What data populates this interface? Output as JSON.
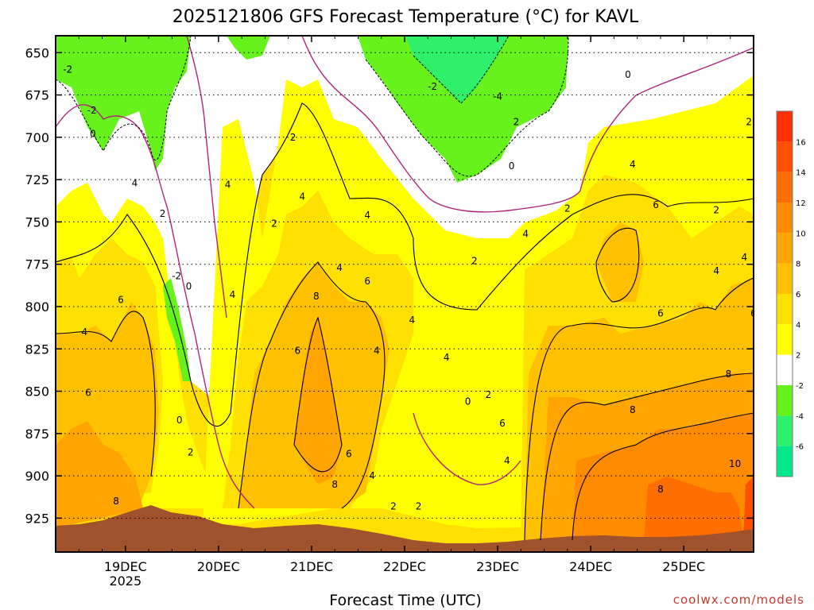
{
  "chart_data": {
    "type": "heatmap",
    "title": "2025121806 GFS Forecast Temperature (°C) for KAVL",
    "xlabel": "Forecast Time (UTC)",
    "ylabel": "",
    "watermark": "coolwx.com/models",
    "y_axis": {
      "ticks": [
        650,
        675,
        700,
        725,
        750,
        775,
        800,
        825,
        850,
        875,
        900,
        925
      ],
      "range": [
        640,
        945
      ],
      "units": "hPa"
    },
    "x_axis": {
      "ticks": [
        {
          "label": "19DEC",
          "sublabel": "2025",
          "day": 19
        },
        {
          "label": "20DEC",
          "sublabel": "",
          "day": 20
        },
        {
          "label": "21DEC",
          "sublabel": "",
          "day": 21
        },
        {
          "label": "22DEC",
          "sublabel": "",
          "day": 22
        },
        {
          "label": "23DEC",
          "sublabel": "",
          "day": 23
        },
        {
          "label": "24DEC",
          "sublabel": "",
          "day": 24
        },
        {
          "label": "25DEC",
          "sublabel": "",
          "day": 25
        }
      ],
      "range": [
        18.25,
        25.75
      ]
    },
    "colorbar": {
      "levels": [
        -8,
        -6,
        -4,
        -2,
        2,
        4,
        6,
        8,
        10,
        12,
        14,
        16,
        18
      ],
      "colors": [
        "#00e88a",
        "#2ef06a",
        "#66f21a",
        "#ffffff",
        "#ffff00",
        "#ffe000",
        "#ffc000",
        "#ffa400",
        "#ff8c00",
        "#ff6e00",
        "#ff5000",
        "#ff3000"
      ],
      "tick_labels": [
        "-6",
        "-4",
        "-2",
        "2",
        "4",
        "6",
        "8",
        "10",
        "12",
        "14",
        "16"
      ]
    },
    "terrain_color": "#a0522d",
    "contour_labels": [
      {
        "t": 18.38,
        "p": 660,
        "v": "-2"
      },
      {
        "t": 18.64,
        "p": 684,
        "v": "-2"
      },
      {
        "t": 18.65,
        "p": 698,
        "v": "0"
      },
      {
        "t": 19.1,
        "p": 727,
        "v": "4"
      },
      {
        "t": 19.4,
        "p": 745,
        "v": "2"
      },
      {
        "t": 19.55,
        "p": 782,
        "v": "-2"
      },
      {
        "t": 19.68,
        "p": 788,
        "v": "0"
      },
      {
        "t": 18.56,
        "p": 815,
        "v": "4"
      },
      {
        "t": 18.95,
        "p": 796,
        "v": "6"
      },
      {
        "t": 18.6,
        "p": 851,
        "v": "6"
      },
      {
        "t": 19.58,
        "p": 867,
        "v": "0"
      },
      {
        "t": 19.7,
        "p": 886,
        "v": "2"
      },
      {
        "t": 18.9,
        "p": 915,
        "v": "8"
      },
      {
        "t": 20.1,
        "p": 728,
        "v": "4"
      },
      {
        "t": 20.6,
        "p": 751,
        "v": "2"
      },
      {
        "t": 20.15,
        "p": 793,
        "v": "4"
      },
      {
        "t": 20.8,
        "p": 700,
        "v": "2"
      },
      {
        "t": 20.9,
        "p": 735,
        "v": "4"
      },
      {
        "t": 20.85,
        "p": 826,
        "v": "6"
      },
      {
        "t": 21.05,
        "p": 794,
        "v": "8"
      },
      {
        "t": 21.3,
        "p": 777,
        "v": "4"
      },
      {
        "t": 21.6,
        "p": 785,
        "v": "6"
      },
      {
        "t": 21.6,
        "p": 746,
        "v": "4"
      },
      {
        "t": 21.7,
        "p": 826,
        "v": "4"
      },
      {
        "t": 21.4,
        "p": 887,
        "v": "6"
      },
      {
        "t": 21.25,
        "p": 905,
        "v": "8"
      },
      {
        "t": 21.65,
        "p": 900,
        "v": "4"
      },
      {
        "t": 21.88,
        "p": 918,
        "v": "2"
      },
      {
        "t": 22.08,
        "p": 808,
        "v": "4"
      },
      {
        "t": 22.45,
        "p": 830,
        "v": "4"
      },
      {
        "t": 22.68,
        "p": 856,
        "v": "0"
      },
      {
        "t": 22.9,
        "p": 852,
        "v": "2"
      },
      {
        "t": 23.05,
        "p": 869,
        "v": "6"
      },
      {
        "t": 23.1,
        "p": 891,
        "v": "4"
      },
      {
        "t": 22.15,
        "p": 918,
        "v": "2"
      },
      {
        "t": 22.75,
        "p": 773,
        "v": "2"
      },
      {
        "t": 23.3,
        "p": 757,
        "v": "4"
      },
      {
        "t": 23.75,
        "p": 742,
        "v": "2"
      },
      {
        "t": 23.15,
        "p": 717,
        "v": "0"
      },
      {
        "t": 23.2,
        "p": 691,
        "v": "2"
      },
      {
        "t": 23.0,
        "p": 676,
        "v": "-4"
      },
      {
        "t": 22.3,
        "p": 670,
        "v": "-2"
      },
      {
        "t": 24.4,
        "p": 663,
        "v": "0"
      },
      {
        "t": 24.45,
        "p": 716,
        "v": "4"
      },
      {
        "t": 24.7,
        "p": 740,
        "v": "6"
      },
      {
        "t": 25.35,
        "p": 743,
        "v": "2"
      },
      {
        "t": 25.7,
        "p": 691,
        "v": "2"
      },
      {
        "t": 25.65,
        "p": 771,
        "v": "4"
      },
      {
        "t": 25.35,
        "p": 779,
        "v": "4"
      },
      {
        "t": 24.75,
        "p": 804,
        "v": "6"
      },
      {
        "t": 25.75,
        "p": 804,
        "v": "6"
      },
      {
        "t": 25.48,
        "p": 840,
        "v": "8"
      },
      {
        "t": 24.45,
        "p": 861,
        "v": "8"
      },
      {
        "t": 24.75,
        "p": 908,
        "v": "8"
      },
      {
        "t": 25.55,
        "p": 893,
        "v": "10"
      }
    ]
  }
}
